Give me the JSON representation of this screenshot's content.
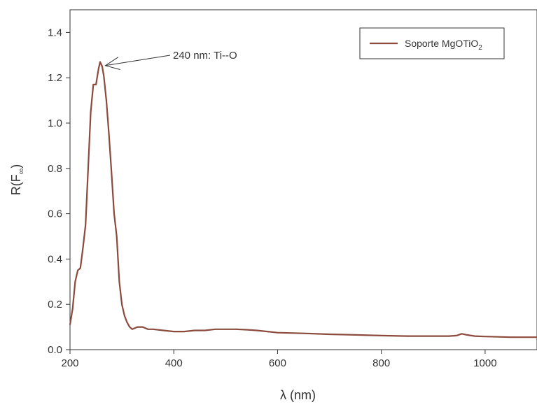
{
  "chart_data": {
    "type": "line",
    "xlabel": "λ (nm)",
    "ylabel": {
      "main": "R(F",
      "sub": "∞",
      "close": ")"
    },
    "xlim": [
      200,
      1100
    ],
    "ylim": [
      0.0,
      1.5
    ],
    "xticks": [
      200,
      400,
      600,
      800,
      1000
    ],
    "yticks": [
      0.0,
      0.2,
      0.4,
      0.6,
      0.8,
      1.0,
      1.2,
      1.4
    ],
    "grid": false,
    "legend": {
      "position": "top-right"
    },
    "annotation": {
      "text": "240 nm: Ti--O",
      "x": 260,
      "y": 1.26
    },
    "series": [
      {
        "name": {
          "main": "Soporte MgOTiO",
          "sub": "2"
        },
        "color": "#8b4a3c",
        "x": [
          200,
          205,
          210,
          215,
          220,
          225,
          230,
          235,
          240,
          245,
          250,
          255,
          258,
          262,
          265,
          270,
          275,
          280,
          285,
          290,
          295,
          300,
          305,
          310,
          315,
          320,
          330,
          340,
          350,
          360,
          380,
          400,
          420,
          440,
          460,
          480,
          500,
          520,
          540,
          560,
          600,
          650,
          700,
          750,
          800,
          850,
          900,
          930,
          945,
          955,
          965,
          980,
          1000,
          1050,
          1100
        ],
        "y": [
          0.11,
          0.18,
          0.3,
          0.35,
          0.36,
          0.45,
          0.55,
          0.8,
          1.05,
          1.17,
          1.17,
          1.24,
          1.27,
          1.25,
          1.21,
          1.1,
          0.95,
          0.78,
          0.6,
          0.5,
          0.3,
          0.2,
          0.15,
          0.12,
          0.1,
          0.09,
          0.1,
          0.1,
          0.09,
          0.09,
          0.085,
          0.08,
          0.08,
          0.085,
          0.085,
          0.09,
          0.09,
          0.09,
          0.088,
          0.085,
          0.075,
          0.072,
          0.068,
          0.065,
          0.062,
          0.06,
          0.06,
          0.06,
          0.062,
          0.07,
          0.065,
          0.06,
          0.058,
          0.055,
          0.055
        ]
      }
    ]
  }
}
